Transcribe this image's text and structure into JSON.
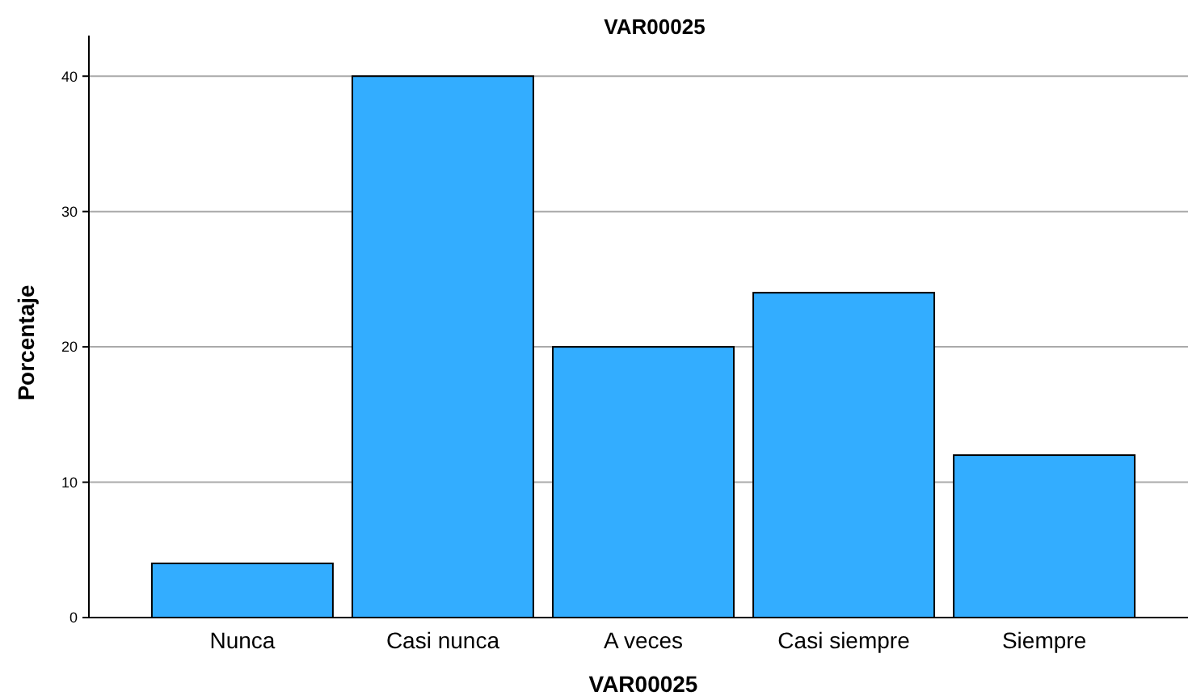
{
  "chart_data": {
    "type": "bar",
    "title": "VAR00025",
    "xlabel": "VAR00025",
    "ylabel": "Porcentaje",
    "categories": [
      "Nunca",
      "Casi nunca",
      "A veces",
      "Casi siempre",
      "Siempre"
    ],
    "values": [
      4,
      40,
      20,
      24,
      12
    ],
    "color": "#33adff",
    "ylim": [
      0,
      43
    ],
    "yticks": [
      0,
      10,
      20,
      30,
      40
    ],
    "grid": "y"
  }
}
